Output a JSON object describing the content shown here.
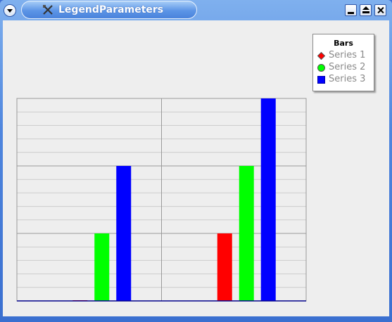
{
  "window": {
    "title": "LegendParameters",
    "buttons": [
      "menu",
      "minimize",
      "maximize",
      "close"
    ]
  },
  "colors": {
    "series1": "#ff0000",
    "series2": "#00ff00",
    "series3": "#0000ff",
    "plot_background": "#eeeeee",
    "grid_major": "#9a9a9a",
    "grid_minor": "#cccccc"
  },
  "legend": {
    "title": "Bars",
    "position": "top-right",
    "items": [
      {
        "label": "Series 1",
        "icon": "diamond-icon"
      },
      {
        "label": "Series 2",
        "icon": "circle-icon"
      },
      {
        "label": "Series 3",
        "icon": "square-icon"
      }
    ]
  },
  "chart_data": {
    "type": "bar",
    "title": "",
    "xlabel": "",
    "ylabel": "",
    "categories": [
      "",
      ""
    ],
    "ylim": [
      0,
      3
    ],
    "grid": true,
    "major_step": 1,
    "minor_per_major": 5,
    "series": [
      {
        "name": "Series 1",
        "values": [
          0,
          1
        ]
      },
      {
        "name": "Series 2",
        "values": [
          1,
          2
        ]
      },
      {
        "name": "Series 3",
        "values": [
          2,
          3
        ]
      }
    ]
  }
}
